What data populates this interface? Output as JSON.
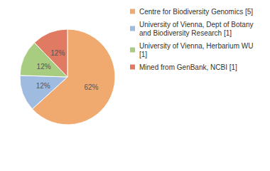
{
  "chart_data": {
    "type": "pie",
    "categories": [
      "Centre for Biodiversity Genomics [5]",
      "University of Vienna, Dept of Botany and Biodiversity Research [1]",
      "University of Vienna, Herbarium WU [1]",
      "Mined from GenBank, NCBI [1]"
    ],
    "values": [
      62,
      12,
      12,
      12
    ],
    "value_labels": [
      "62%",
      "12%",
      "12%",
      "12%"
    ],
    "colors": [
      "#f0aa70",
      "#a0bbe0",
      "#a8cc80",
      "#e07a62"
    ],
    "data_labels": true,
    "legend": "right"
  }
}
